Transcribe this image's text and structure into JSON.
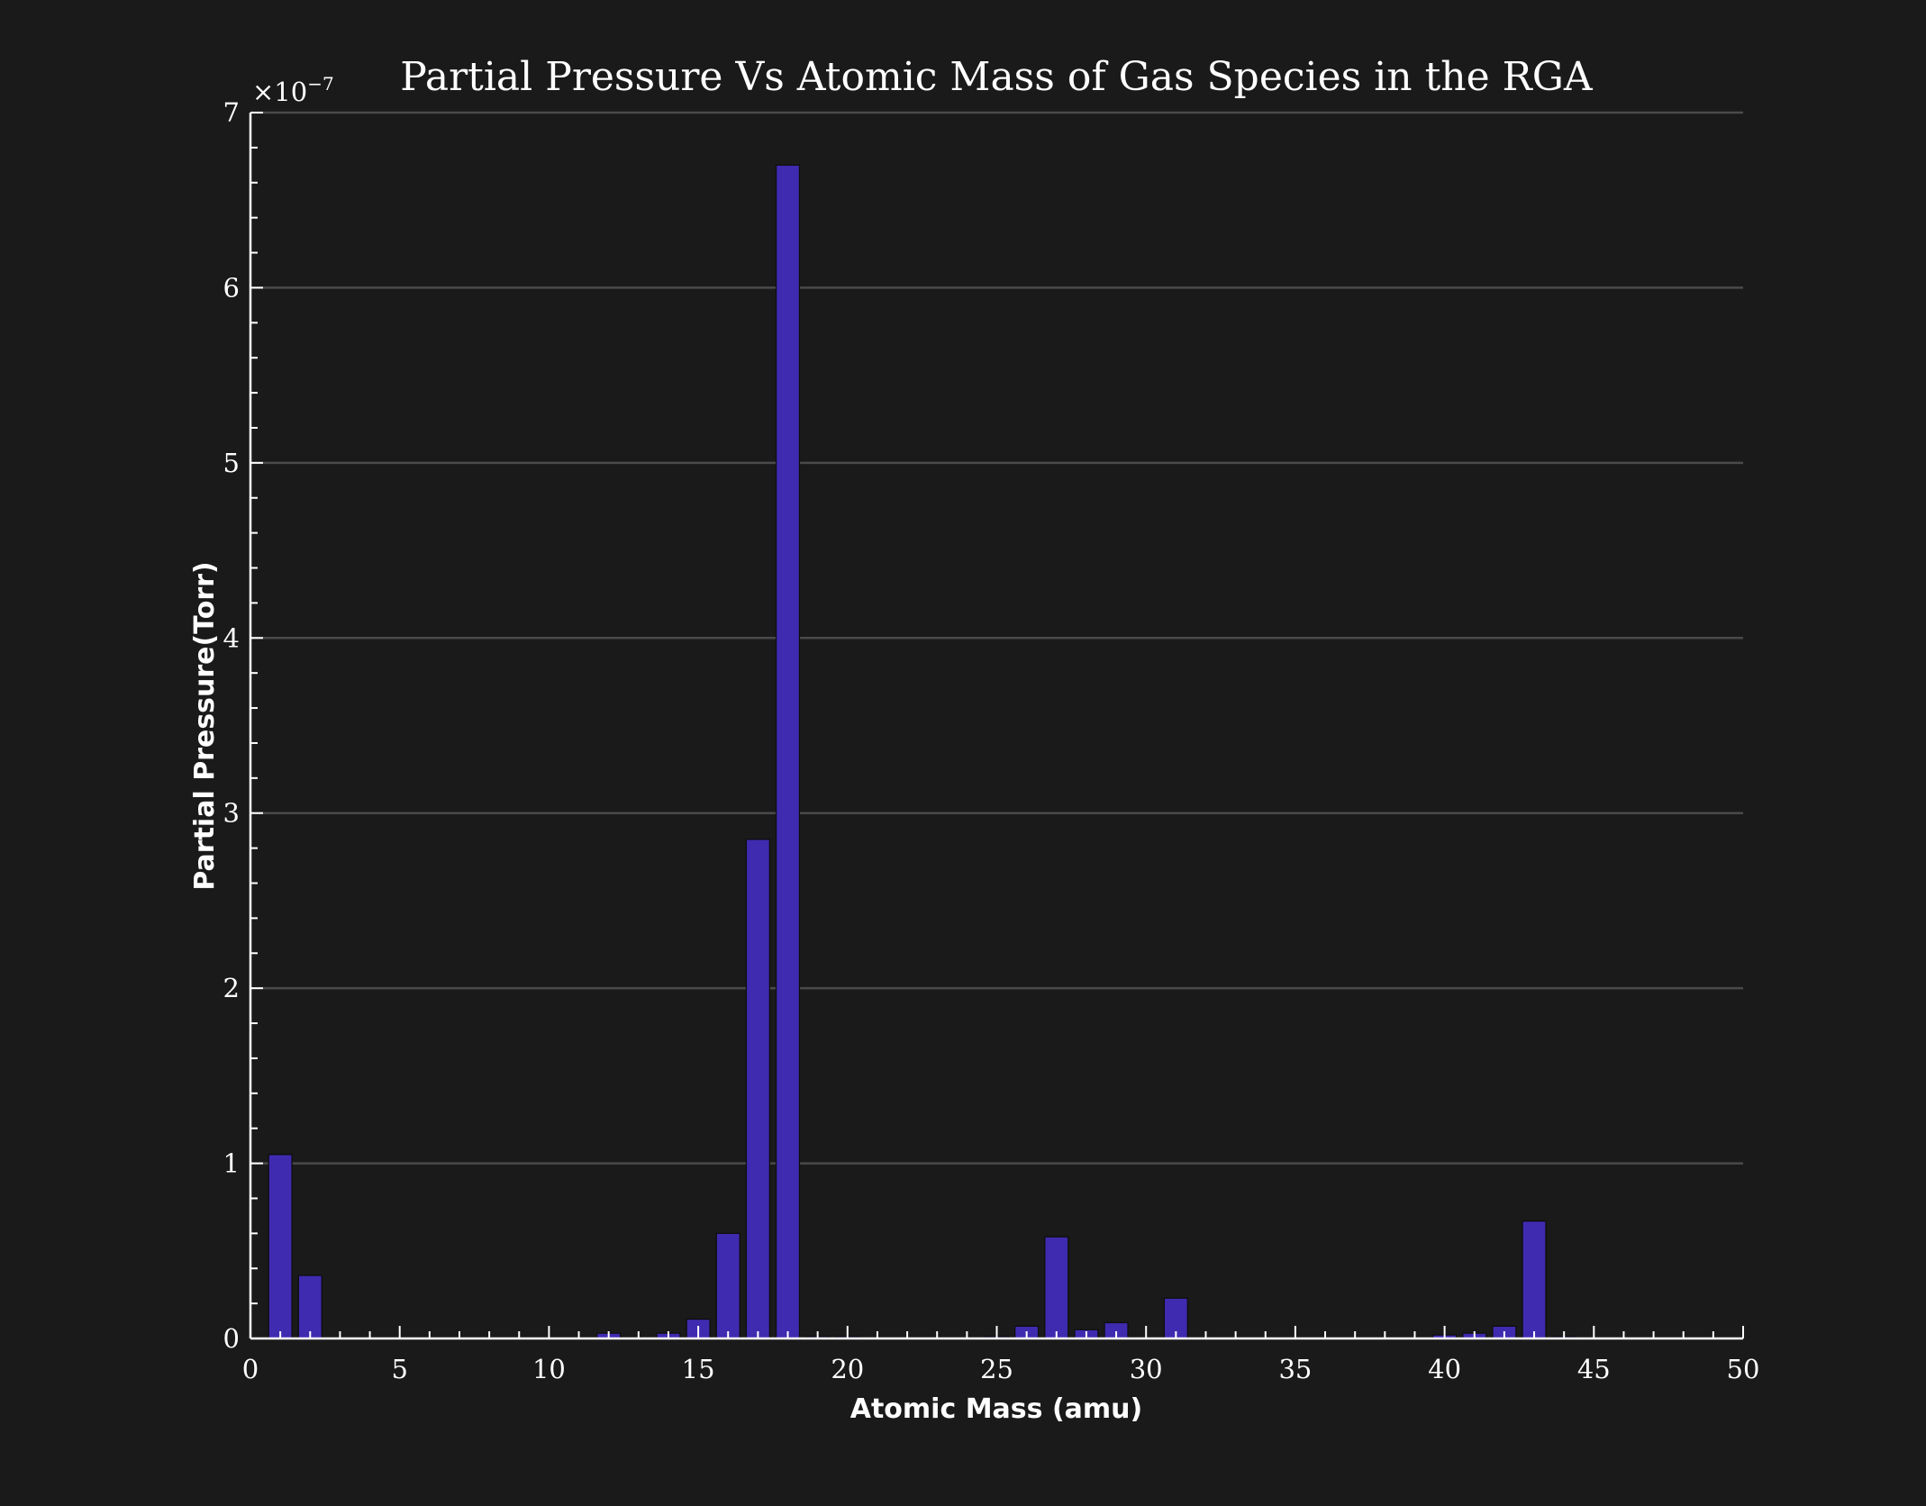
{
  "chart_data": {
    "type": "bar",
    "title": "Partial Pressure Vs Atomic Mass of Gas Species in the RGA",
    "xlabel": "Atomic Mass (amu)",
    "ylabel": "Partial Pressure(Torr)",
    "y_offset_prefix": "×10",
    "y_offset_exponent": "−7",
    "xlim": [
      0,
      50
    ],
    "ylim": [
      0,
      7
    ],
    "x_ticks": [
      0,
      5,
      10,
      15,
      20,
      25,
      30,
      35,
      40,
      45,
      50
    ],
    "y_ticks": [
      0,
      1,
      2,
      3,
      4,
      5,
      6,
      7
    ],
    "y_tick_labels": [
      "0",
      "1",
      "2",
      "3",
      "4",
      "5",
      "6",
      "7"
    ],
    "x_tick_labels": [
      "0",
      "5",
      "10",
      "15",
      "20",
      "25",
      "30",
      "35",
      "40",
      "45",
      "50"
    ],
    "grid": "horizontal",
    "bar_color": "#3f2bb0",
    "background": "#1a1a1a",
    "x": [
      1,
      2,
      12,
      14,
      15,
      16,
      17,
      18,
      19,
      20,
      25,
      26,
      27,
      28,
      29,
      31,
      40,
      41,
      42,
      43,
      44
    ],
    "values": [
      1.05,
      0.36,
      0.03,
      0.03,
      0.11,
      0.6,
      2.85,
      6.7,
      0.01,
      0.01,
      0.01,
      0.07,
      0.58,
      0.05,
      0.09,
      0.23,
      0.02,
      0.03,
      0.07,
      0.67,
      0.01
    ]
  }
}
